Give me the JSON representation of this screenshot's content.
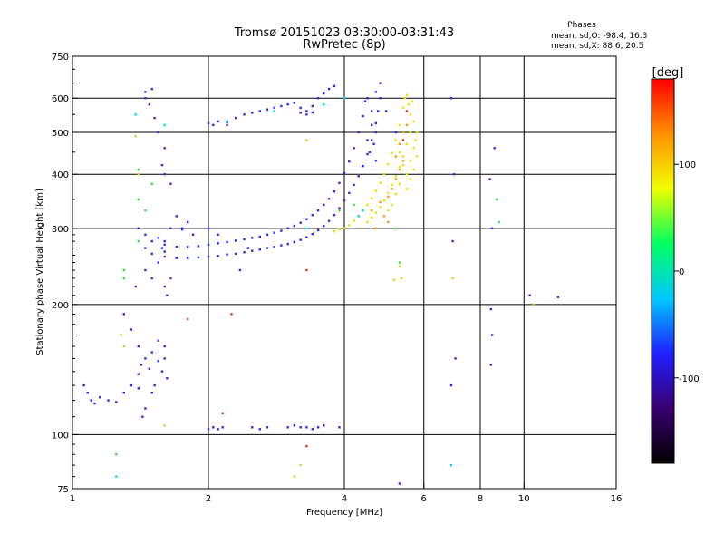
{
  "chart_data": {
    "type": "scatter",
    "title": "Tromsø 20151023 03:30:00-03:31:43",
    "subtitle": "RwPretec (8p)",
    "xlabel": "Frequency [MHz]",
    "ylabel": "Stationary phase Virtual Height [km]",
    "x_scale": "log",
    "y_scale": "log",
    "xlim": [
      1,
      16
    ],
    "ylim": [
      75,
      750
    ],
    "x_ticks": [
      1,
      2,
      4,
      6,
      8,
      10,
      16
    ],
    "y_ticks": [
      75,
      100,
      200,
      300,
      400,
      500,
      600,
      750
    ],
    "x_grid": [
      2,
      4,
      6,
      8,
      10
    ],
    "y_grid": [
      100,
      200,
      300,
      400,
      500,
      600
    ],
    "grid": true,
    "stats": {
      "heading": "Phases",
      "line_o": "mean, sd,O: -98.4, 16.3",
      "line_x": "mean, sd,X:  88.6, 20.5"
    },
    "colorbar": {
      "label": "[deg]",
      "range": [
        -180,
        180
      ],
      "ticks": [
        100,
        0,
        -100
      ],
      "colormap": [
        "#000000",
        "#3a0070",
        "#2020ff",
        "#00c8ff",
        "#00ff60",
        "#f0ff00",
        "#ff9000",
        "#ff0000"
      ]
    },
    "series": [
      {
        "phase_deg": -100,
        "color": "#2b2bf0",
        "points": [
          [
            1.6,
            258
          ],
          [
            1.7,
            256
          ],
          [
            1.8,
            256
          ],
          [
            1.9,
            257
          ],
          [
            2.0,
            258
          ],
          [
            2.1,
            259
          ],
          [
            2.2,
            261
          ],
          [
            2.3,
            262
          ],
          [
            2.4,
            264
          ],
          [
            2.5,
            266
          ],
          [
            2.6,
            268
          ],
          [
            2.7,
            270
          ],
          [
            2.8,
            272
          ],
          [
            2.9,
            274
          ],
          [
            3.0,
            276
          ],
          [
            3.1,
            279
          ],
          [
            3.2,
            282
          ],
          [
            3.3,
            286
          ],
          [
            3.4,
            291
          ],
          [
            3.5,
            297
          ],
          [
            3.6,
            304
          ],
          [
            3.7,
            312
          ],
          [
            3.8,
            322
          ],
          [
            3.9,
            334
          ],
          [
            4.0,
            348
          ],
          [
            4.1,
            362
          ],
          [
            4.2,
            378
          ],
          [
            4.3,
            396
          ],
          [
            4.4,
            418
          ],
          [
            4.5,
            445
          ],
          [
            4.6,
            480
          ],
          [
            4.7,
            525
          ],
          [
            4.75,
            560
          ],
          [
            4.8,
            600
          ],
          [
            1.5,
            280
          ],
          [
            1.6,
            275
          ],
          [
            1.7,
            272
          ],
          [
            1.8,
            272
          ],
          [
            1.9,
            273
          ],
          [
            2.0,
            275
          ],
          [
            2.1,
            277
          ],
          [
            2.2,
            279
          ],
          [
            2.3,
            281
          ],
          [
            2.4,
            283
          ],
          [
            2.5,
            285
          ],
          [
            2.6,
            287
          ],
          [
            2.7,
            290
          ],
          [
            2.8,
            293
          ],
          [
            2.9,
            296
          ],
          [
            3.0,
            300
          ],
          [
            3.1,
            304
          ],
          [
            3.2,
            309
          ],
          [
            3.3,
            315
          ],
          [
            3.4,
            322
          ],
          [
            3.5,
            330
          ],
          [
            3.6,
            340
          ],
          [
            3.7,
            351
          ],
          [
            3.8,
            365
          ],
          [
            3.9,
            382
          ],
          [
            4.0,
            402
          ],
          [
            4.1,
            428
          ],
          [
            4.2,
            460
          ],
          [
            4.3,
            500
          ],
          [
            4.4,
            545
          ],
          [
            4.45,
            590
          ],
          [
            1.4,
            300
          ],
          [
            1.45,
            290
          ],
          [
            1.55,
            285
          ],
          [
            1.65,
            300
          ],
          [
            1.75,
            298
          ],
          [
            1.85,
            290
          ],
          [
            2.0,
            300
          ],
          [
            2.1,
            290
          ],
          [
            1.5,
            262
          ],
          [
            1.6,
            265
          ],
          [
            1.45,
            270
          ],
          [
            2.0,
            525
          ],
          [
            2.05,
            520
          ],
          [
            2.1,
            530
          ],
          [
            2.2,
            528
          ],
          [
            2.3,
            540
          ],
          [
            2.4,
            550
          ],
          [
            2.5,
            555
          ],
          [
            2.6,
            560
          ],
          [
            2.7,
            565
          ],
          [
            2.8,
            570
          ],
          [
            2.9,
            575
          ],
          [
            3.0,
            580
          ],
          [
            3.1,
            585
          ],
          [
            3.2,
            570
          ],
          [
            3.3,
            560
          ],
          [
            3.4,
            575
          ],
          [
            3.5,
            600
          ],
          [
            3.6,
            615
          ],
          [
            3.7,
            630
          ],
          [
            3.8,
            640
          ],
          [
            2.2,
            520
          ],
          [
            3.2,
            555
          ],
          [
            3.3,
            550
          ],
          [
            3.4,
            556
          ],
          [
            4.5,
            600
          ],
          [
            4.6,
            560
          ],
          [
            4.7,
            620
          ],
          [
            4.8,
            650
          ],
          [
            4.7,
            500
          ],
          [
            4.6,
            520
          ],
          [
            4.5,
            480
          ],
          [
            4.55,
            450
          ],
          [
            4.65,
            470
          ],
          [
            4.7,
            430
          ],
          [
            1.06,
            130
          ],
          [
            1.08,
            125
          ],
          [
            1.1,
            120
          ],
          [
            1.12,
            118
          ],
          [
            1.15,
            122
          ],
          [
            1.2,
            120
          ],
          [
            1.25,
            119
          ],
          [
            1.3,
            125
          ],
          [
            1.35,
            130
          ],
          [
            1.4,
            138
          ],
          [
            1.42,
            145
          ],
          [
            1.45,
            150
          ],
          [
            1.5,
            155
          ],
          [
            1.55,
            148
          ],
          [
            1.6,
            160
          ],
          [
            1.58,
            140
          ],
          [
            1.62,
            135
          ],
          [
            1.5,
            125
          ],
          [
            1.52,
            130
          ],
          [
            1.45,
            115
          ],
          [
            1.4,
            128
          ],
          [
            1.48,
            142
          ],
          [
            1.55,
            165
          ],
          [
            1.6,
            150
          ],
          [
            1.3,
            190
          ],
          [
            1.35,
            175
          ],
          [
            1.4,
            160
          ],
          [
            1.43,
            110
          ],
          [
            1.38,
            220
          ],
          [
            1.45,
            240
          ],
          [
            1.5,
            230
          ],
          [
            1.55,
            250
          ],
          [
            1.58,
            270
          ],
          [
            1.6,
            280
          ],
          [
            1.6,
            220
          ],
          [
            1.62,
            210
          ],
          [
            1.65,
            230
          ],
          [
            1.45,
            620
          ],
          [
            1.45,
            600
          ],
          [
            1.5,
            630
          ],
          [
            1.48,
            580
          ],
          [
            1.52,
            540
          ],
          [
            1.55,
            500
          ],
          [
            1.6,
            460
          ],
          [
            1.58,
            420
          ],
          [
            1.6,
            400
          ],
          [
            1.65,
            380
          ],
          [
            1.7,
            320
          ],
          [
            1.75,
            300
          ],
          [
            1.8,
            310
          ],
          [
            2.0,
            103
          ],
          [
            2.05,
            104
          ],
          [
            2.1,
            103
          ],
          [
            2.15,
            104
          ],
          [
            2.5,
            104
          ],
          [
            2.6,
            103
          ],
          [
            2.7,
            104
          ],
          [
            3.0,
            104
          ],
          [
            3.1,
            105
          ],
          [
            3.2,
            104
          ],
          [
            3.3,
            104
          ],
          [
            3.4,
            103
          ],
          [
            3.5,
            104
          ],
          [
            3.6,
            105
          ],
          [
            3.9,
            104
          ],
          [
            5.3,
            77
          ],
          [
            6.9,
            600
          ],
          [
            7.0,
            400
          ],
          [
            6.95,
            280
          ],
          [
            6.9,
            130
          ],
          [
            7.05,
            150
          ],
          [
            8.4,
            390
          ],
          [
            8.5,
            300
          ],
          [
            8.6,
            460
          ],
          [
            8.45,
            195
          ],
          [
            8.5,
            170
          ],
          [
            8.45,
            145
          ],
          [
            10.3,
            210
          ],
          [
            11.9,
            208
          ],
          [
            2.35,
            240
          ],
          [
            2.45,
            270
          ],
          [
            5.2,
            500
          ],
          [
            4.95,
            560
          ]
        ]
      },
      {
        "phase_deg": 100,
        "color": "#e8e400",
        "points": [
          [
            4.0,
            300
          ],
          [
            4.1,
            305
          ],
          [
            4.2,
            312
          ],
          [
            4.3,
            320
          ],
          [
            4.4,
            330
          ],
          [
            4.5,
            340
          ],
          [
            4.6,
            352
          ],
          [
            4.7,
            366
          ],
          [
            4.8,
            382
          ],
          [
            4.9,
            400
          ],
          [
            5.0,
            422
          ],
          [
            5.1,
            448
          ],
          [
            5.2,
            480
          ],
          [
            5.3,
            520
          ],
          [
            5.4,
            570
          ],
          [
            5.5,
            610
          ],
          [
            4.5,
            310
          ],
          [
            4.6,
            318
          ],
          [
            4.7,
            326
          ],
          [
            4.8,
            336
          ],
          [
            4.9,
            348
          ],
          [
            5.0,
            362
          ],
          [
            5.1,
            378
          ],
          [
            5.2,
            396
          ],
          [
            5.3,
            416
          ],
          [
            5.4,
            440
          ],
          [
            5.5,
            470
          ],
          [
            5.6,
            500
          ],
          [
            5.6,
            550
          ],
          [
            5.7,
            530
          ],
          [
            5.75,
            480
          ],
          [
            5.8,
            440
          ],
          [
            5.7,
            410
          ],
          [
            5.6,
            390
          ],
          [
            5.5,
            370
          ],
          [
            3.8,
            295
          ],
          [
            3.9,
            298
          ],
          [
            5.3,
            450
          ],
          [
            5.4,
            420
          ],
          [
            5.2,
            360
          ],
          [
            5.1,
            340
          ],
          [
            5.0,
            330
          ],
          [
            5.3,
            380
          ],
          [
            5.5,
            400
          ],
          [
            5.6,
            430
          ],
          [
            5.7,
            460
          ],
          [
            5.8,
            500
          ],
          [
            5.55,
            580
          ],
          [
            5.45,
            600
          ],
          [
            5.65,
            590
          ]
        ]
      },
      {
        "phase_deg": 150,
        "color": "#ff9a00",
        "points": [
          [
            4.6,
            330
          ],
          [
            4.8,
            345
          ],
          [
            5.0,
            355
          ],
          [
            5.1,
            370
          ],
          [
            5.2,
            390
          ],
          [
            5.3,
            410
          ],
          [
            5.4,
            430
          ],
          [
            5.0,
            310
          ],
          [
            4.9,
            320
          ],
          [
            4.7,
            300
          ],
          [
            5.3,
            470
          ],
          [
            5.4,
            500
          ],
          [
            5.2,
            440
          ],
          [
            5.5,
            520
          ]
        ]
      },
      {
        "phase_deg": 20,
        "color": "#40d840",
        "points": [
          [
            1.4,
            410
          ],
          [
            1.45,
            330
          ],
          [
            1.4,
            280
          ],
          [
            1.3,
            230
          ],
          [
            1.25,
            90
          ],
          [
            1.3,
            240
          ],
          [
            1.5,
            380
          ],
          [
            3.9,
            330
          ],
          [
            4.2,
            340
          ],
          [
            8.7,
            350
          ],
          [
            8.8,
            310
          ],
          [
            5.3,
            250
          ],
          [
            5.2,
            300
          ],
          [
            1.4,
            350
          ]
        ]
      },
      {
        "phase_deg": -30,
        "color": "#00d8f0",
        "points": [
          [
            1.38,
            550
          ],
          [
            1.6,
            520
          ],
          [
            2.8,
            560
          ],
          [
            3.6,
            580
          ],
          [
            4.4,
            330
          ],
          [
            4.3,
            320
          ],
          [
            6.9,
            85
          ],
          [
            1.25,
            80
          ],
          [
            2.2,
            530
          ],
          [
            3.3,
            300
          ],
          [
            4.0,
            600
          ]
        ]
      },
      {
        "phase_deg": 170,
        "color": "#e03030",
        "points": [
          [
            2.15,
            112
          ],
          [
            2.25,
            190
          ],
          [
            3.3,
            94
          ],
          [
            3.3,
            240
          ],
          [
            5.4,
            480
          ],
          [
            5.5,
            560
          ],
          [
            1.8,
            185
          ]
        ]
      },
      {
        "phase_deg": 80,
        "color": "#c8d820",
        "points": [
          [
            1.38,
            490
          ],
          [
            1.4,
            400
          ],
          [
            1.28,
            170
          ],
          [
            1.3,
            160
          ],
          [
            3.1,
            80
          ],
          [
            3.2,
            85
          ],
          [
            3.3,
            480
          ],
          [
            5.15,
            228
          ],
          [
            5.35,
            230
          ],
          [
            5.3,
            245
          ],
          [
            6.95,
            230
          ],
          [
            10.5,
            200
          ],
          [
            1.6,
            105
          ]
        ]
      }
    ]
  }
}
